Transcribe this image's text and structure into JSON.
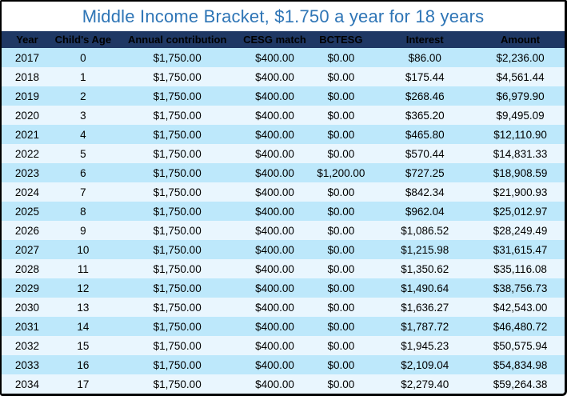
{
  "title": "Middle Income Bracket, $1.750 a year for 18 years",
  "colors": {
    "title_text": "#2E75B6",
    "header_bg": "#1F3864",
    "header_text": "#FFFFFF",
    "row_odd": "#BDE8FB",
    "row_even": "#E9F6FE",
    "border": "#000000"
  },
  "chart_data": {
    "type": "table",
    "title": "Middle Income Bracket, $1.750 a year for 18 years",
    "columns": [
      "Year",
      "Child's Age",
      "Annual contribution",
      "CESG match",
      "BCTESG",
      "Interest",
      "Amount"
    ],
    "rows": [
      [
        "2017",
        "0",
        "$1,750.00",
        "$400.00",
        "$0.00",
        "$86.00",
        "$2,236.00"
      ],
      [
        "2018",
        "1",
        "$1,750.00",
        "$400.00",
        "$0.00",
        "$175.44",
        "$4,561.44"
      ],
      [
        "2019",
        "2",
        "$1,750.00",
        "$400.00",
        "$0.00",
        "$268.46",
        "$6,979.90"
      ],
      [
        "2020",
        "3",
        "$1,750.00",
        "$400.00",
        "$0.00",
        "$365.20",
        "$9,495.09"
      ],
      [
        "2021",
        "4",
        "$1,750.00",
        "$400.00",
        "$0.00",
        "$465.80",
        "$12,110.90"
      ],
      [
        "2022",
        "5",
        "$1,750.00",
        "$400.00",
        "$0.00",
        "$570.44",
        "$14,831.33"
      ],
      [
        "2023",
        "6",
        "$1,750.00",
        "$400.00",
        "$1,200.00",
        "$727.25",
        "$18,908.59"
      ],
      [
        "2024",
        "7",
        "$1,750.00",
        "$400.00",
        "$0.00",
        "$842.34",
        "$21,900.93"
      ],
      [
        "2025",
        "8",
        "$1,750.00",
        "$400.00",
        "$0.00",
        "$962.04",
        "$25,012.97"
      ],
      [
        "2026",
        "9",
        "$1,750.00",
        "$400.00",
        "$0.00",
        "$1,086.52",
        "$28,249.49"
      ],
      [
        "2027",
        "10",
        "$1,750.00",
        "$400.00",
        "$0.00",
        "$1,215.98",
        "$31,615.47"
      ],
      [
        "2028",
        "11",
        "$1,750.00",
        "$400.00",
        "$0.00",
        "$1,350.62",
        "$35,116.08"
      ],
      [
        "2029",
        "12",
        "$1,750.00",
        "$400.00",
        "$0.00",
        "$1,490.64",
        "$38,756.73"
      ],
      [
        "2030",
        "13",
        "$1,750.00",
        "$400.00",
        "$0.00",
        "$1,636.27",
        "$42,543.00"
      ],
      [
        "2031",
        "14",
        "$1,750.00",
        "$400.00",
        "$0.00",
        "$1,787.72",
        "$46,480.72"
      ],
      [
        "2032",
        "15",
        "$1,750.00",
        "$400.00",
        "$0.00",
        "$1,945.23",
        "$50,575.94"
      ],
      [
        "2033",
        "16",
        "$1,750.00",
        "$400.00",
        "$0.00",
        "$2,109.04",
        "$54,834.98"
      ],
      [
        "2034",
        "17",
        "$1,750.00",
        "$400.00",
        "$0.00",
        "$2,279.40",
        "$59,264.38"
      ]
    ]
  }
}
